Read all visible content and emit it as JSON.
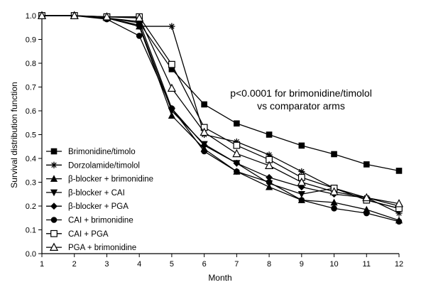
{
  "chart_data": {
    "type": "line",
    "xlabel": "Month",
    "ylabel": "Survival distribution function",
    "xlim": [
      1,
      12
    ],
    "ylim": [
      0,
      1.0
    ],
    "x": [
      1,
      2,
      3,
      4,
      5,
      6,
      7,
      8,
      9,
      10,
      11,
      12
    ],
    "x_ticks": [
      "1",
      "2",
      "3",
      "4",
      "5",
      "6",
      "7",
      "8",
      "9",
      "10",
      "11",
      "12"
    ],
    "y_ticks": [
      "0.0",
      "0.1",
      "0.2",
      "0.3",
      "0.4",
      "0.5",
      "0.6",
      "0.7",
      "0.8",
      "0.9",
      "1.0"
    ],
    "grid": false,
    "legend_position": "bottom-left",
    "annotation": [
      "p<0.0001 for brimonidine/timolol",
      "vs comparator arms"
    ],
    "series": [
      {
        "name": "Brimonidine/timolo",
        "marker": "filled-square",
        "values": [
          1.0,
          1.0,
          0.99,
          0.97,
          0.775,
          0.627,
          0.547,
          0.5,
          0.454,
          0.418,
          0.375,
          0.348
        ]
      },
      {
        "name": "Dorzolamide/timolol",
        "marker": "asterisk",
        "values": [
          1.0,
          1.0,
          0.99,
          0.955,
          0.955,
          0.5,
          0.47,
          0.415,
          0.345,
          0.275,
          0.235,
          0.17
        ]
      },
      {
        "name": "β-blocker + brimonidine",
        "marker": "filled-triangle-up",
        "values": [
          1.0,
          1.0,
          0.99,
          0.955,
          0.58,
          0.44,
          0.345,
          0.28,
          0.225,
          0.215,
          0.185,
          0.14
        ]
      },
      {
        "name": "β-blocker + CAI",
        "marker": "filled-triangle-down",
        "values": [
          1.0,
          1.0,
          0.99,
          0.96,
          0.6,
          0.46,
          0.38,
          0.295,
          0.25,
          0.275,
          0.225,
          0.19
        ]
      },
      {
        "name": "β-blocker +  PGA",
        "marker": "filled-diamond",
        "values": [
          1.0,
          1.0,
          0.99,
          0.975,
          0.61,
          0.455,
          0.38,
          0.32,
          0.28,
          0.25,
          0.235,
          0.2
        ]
      },
      {
        "name": "CAI + brimonidine",
        "marker": "filled-circle",
        "values": [
          1.0,
          1.0,
          0.985,
          0.915,
          0.61,
          0.43,
          0.345,
          0.3,
          0.225,
          0.19,
          0.17,
          0.135
        ]
      },
      {
        "name": "CAI + PGA",
        "marker": "open-square",
        "values": [
          1.0,
          1.0,
          0.995,
          0.995,
          0.795,
          0.53,
          0.455,
          0.395,
          0.32,
          0.275,
          0.225,
          0.19
        ]
      },
      {
        "name": "PGA + brimonidine",
        "marker": "open-triangle-up",
        "values": [
          1.0,
          1.0,
          0.995,
          0.99,
          0.695,
          0.51,
          0.42,
          0.37,
          0.3,
          0.26,
          0.235,
          0.21
        ]
      }
    ]
  }
}
